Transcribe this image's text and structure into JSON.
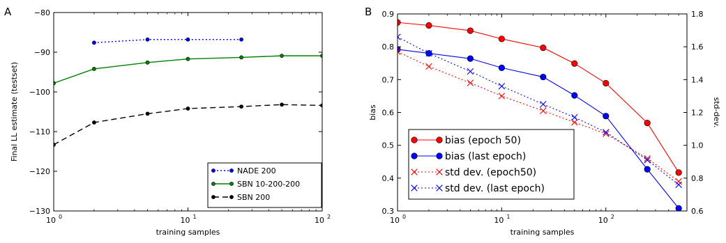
{
  "chart_data": [
    {
      "panel_label": "A",
      "type": "line",
      "xscale": "log",
      "xlim": [
        1,
        100
      ],
      "ylim": [
        -130,
        -80
      ],
      "xlabel": "training samples",
      "ylabel": "Final LL estimate (testset)",
      "x_ticks": [
        {
          "value": 1,
          "base": "10",
          "exp": "0"
        },
        {
          "value": 10,
          "base": "10",
          "exp": "1"
        },
        {
          "value": 100,
          "base": "10",
          "exp": "2"
        }
      ],
      "y_ticks": [
        {
          "value": -130,
          "label": "−130"
        },
        {
          "value": -120,
          "label": "−120"
        },
        {
          "value": -110,
          "label": "−110"
        },
        {
          "value": -100,
          "label": "−100"
        },
        {
          "value": -90,
          "label": "−90"
        },
        {
          "value": -80,
          "label": "−80"
        }
      ],
      "legend_position": "lower-right",
      "series": [
        {
          "name": "NADE 200",
          "color": "#0000ff",
          "dash": "dotted",
          "x": [
            2,
            5,
            10,
            25
          ],
          "y": [
            -87.6,
            -86.8,
            -86.8,
            -86.8
          ]
        },
        {
          "name": "SBN 10-200-200",
          "color": "#008000",
          "dash": "solid",
          "x": [
            1,
            2,
            5,
            10,
            25,
            50,
            100
          ],
          "y": [
            -97.8,
            -94.2,
            -92.6,
            -91.7,
            -91.3,
            -90.9,
            -90.9
          ]
        },
        {
          "name": "SBN 200",
          "color": "#000000",
          "dash": "dashed",
          "x": [
            1,
            2,
            5,
            10,
            25,
            50,
            100
          ],
          "y": [
            -113.3,
            -107.7,
            -105.5,
            -104.2,
            -103.7,
            -103.2,
            -103.4
          ]
        }
      ]
    },
    {
      "panel_label": "B",
      "type": "line",
      "xscale": "log",
      "xlim": [
        1,
        600
      ],
      "ylim": [
        0.3,
        0.9
      ],
      "y2lim": [
        0.6,
        1.8
      ],
      "xlabel": "training samples",
      "ylabel": "bias",
      "y2label": "std-dev.",
      "x_ticks": [
        {
          "value": 1,
          "base": "10",
          "exp": "0"
        },
        {
          "value": 10,
          "base": "10",
          "exp": "1"
        },
        {
          "value": 100,
          "base": "10",
          "exp": "2"
        }
      ],
      "y_ticks": [
        {
          "value": 0.3,
          "label": "0.3"
        },
        {
          "value": 0.4,
          "label": "0.4"
        },
        {
          "value": 0.5,
          "label": "0.5"
        },
        {
          "value": 0.6,
          "label": "0.6"
        },
        {
          "value": 0.7,
          "label": "0.7"
        },
        {
          "value": 0.8,
          "label": "0.8"
        },
        {
          "value": 0.9,
          "label": "0.9"
        }
      ],
      "y2_ticks": [
        {
          "value": 0.6,
          "label": "0.6"
        },
        {
          "value": 0.8,
          "label": "0.8"
        },
        {
          "value": 1.0,
          "label": "1.0"
        },
        {
          "value": 1.2,
          "label": "1.2"
        },
        {
          "value": 1.4,
          "label": "1.4"
        },
        {
          "value": 1.6,
          "label": "1.6"
        },
        {
          "value": 1.8,
          "label": "1.8"
        }
      ],
      "legend_position": "lower-left",
      "series": [
        {
          "name": "bias (epoch 50)",
          "color": "#ff0000",
          "dash": "solid",
          "marker": "circle",
          "axis": "left",
          "x": [
            1,
            2,
            5,
            10,
            25,
            50,
            100,
            250,
            500
          ],
          "y": [
            0.874,
            0.865,
            0.849,
            0.824,
            0.797,
            0.749,
            0.689,
            0.568,
            0.417
          ]
        },
        {
          "name": "bias (last epoch)",
          "color": "#0000ff",
          "dash": "solid",
          "marker": "circle",
          "axis": "left",
          "x": [
            1,
            2,
            5,
            10,
            25,
            50,
            100,
            250,
            500
          ],
          "y": [
            0.792,
            0.78,
            0.764,
            0.736,
            0.708,
            0.652,
            0.589,
            0.427,
            0.308
          ]
        },
        {
          "name": "std dev. (epoch50)",
          "color": "#ff0000",
          "dash": "dotted",
          "marker": "x",
          "axis": "right",
          "x": [
            1,
            2,
            5,
            10,
            25,
            50,
            100,
            250,
            500
          ],
          "y": [
            1.57,
            1.48,
            1.38,
            1.3,
            1.21,
            1.14,
            1.07,
            0.92,
            0.78
          ]
        },
        {
          "name": "std dev. (last epoch)",
          "color": "#0000ff",
          "dash": "dotted",
          "marker": "x",
          "axis": "right",
          "x": [
            1,
            2,
            5,
            10,
            25,
            50,
            100,
            250,
            500
          ],
          "y": [
            1.66,
            1.56,
            1.45,
            1.36,
            1.25,
            1.17,
            1.08,
            0.91,
            0.76
          ]
        }
      ]
    }
  ]
}
